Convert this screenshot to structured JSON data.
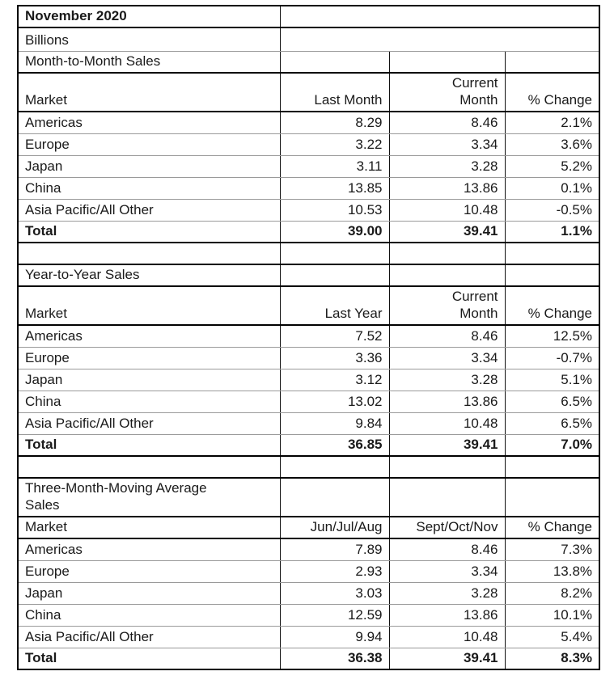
{
  "title_block": {
    "title": "November 2020",
    "unit": "Billions"
  },
  "sections": [
    {
      "title": "Month-to-Month Sales",
      "headers": {
        "market": "Market",
        "cols": [
          "Last Month",
          "Current\nMonth",
          "% Change"
        ]
      },
      "rows": [
        {
          "market": "Americas",
          "values": [
            "8.29",
            "8.46",
            "2.1%"
          ]
        },
        {
          "market": "Europe",
          "values": [
            "3.22",
            "3.34",
            "3.6%"
          ]
        },
        {
          "market": "Japan",
          "values": [
            "3.11",
            "3.28",
            "5.2%"
          ]
        },
        {
          "market": "China",
          "values": [
            "13.85",
            "13.86",
            "0.1%"
          ]
        },
        {
          "market": "Asia Pacific/All Other",
          "values": [
            "10.53",
            "10.48",
            "-0.5%"
          ]
        }
      ],
      "total": {
        "label": "Total",
        "values": [
          "39.00",
          "39.41",
          "1.1%"
        ]
      }
    },
    {
      "title": "Year-to-Year Sales",
      "headers": {
        "market": "Market",
        "cols": [
          "Last Year",
          "Current\nMonth",
          "% Change"
        ]
      },
      "rows": [
        {
          "market": "Americas",
          "values": [
            "7.52",
            "8.46",
            "12.5%"
          ]
        },
        {
          "market": "Europe",
          "values": [
            "3.36",
            "3.34",
            "-0.7%"
          ]
        },
        {
          "market": "Japan",
          "values": [
            "3.12",
            "3.28",
            "5.1%"
          ]
        },
        {
          "market": "China",
          "values": [
            "13.02",
            "13.86",
            "6.5%"
          ]
        },
        {
          "market": "Asia Pacific/All Other",
          "values": [
            "9.84",
            "10.48",
            "6.5%"
          ]
        }
      ],
      "total": {
        "label": "Total",
        "values": [
          "36.85",
          "39.41",
          "7.0%"
        ]
      }
    },
    {
      "title": "Three-Month-Moving Average\nSales",
      "headers": {
        "market": "Market",
        "cols": [
          "Jun/Jul/Aug",
          "Sept/Oct/Nov",
          "% Change"
        ]
      },
      "rows": [
        {
          "market": "Americas",
          "values": [
            "7.89",
            "8.46",
            "7.3%"
          ]
        },
        {
          "market": "Europe",
          "values": [
            "2.93",
            "3.34",
            "13.8%"
          ]
        },
        {
          "market": "Japan",
          "values": [
            "3.03",
            "3.28",
            "8.2%"
          ]
        },
        {
          "market": "China",
          "values": [
            "12.59",
            "13.86",
            "10.1%"
          ]
        },
        {
          "market": "Asia Pacific/All Other",
          "values": [
            "9.94",
            "10.48",
            "5.4%"
          ]
        }
      ],
      "total": {
        "label": "Total",
        "values": [
          "36.38",
          "39.41",
          "8.3%"
        ]
      }
    }
  ],
  "colors": {
    "text": "#1a1a1a",
    "border_heavy": "#000000",
    "border_light": "#9a9a9a",
    "background": "#ffffff"
  }
}
